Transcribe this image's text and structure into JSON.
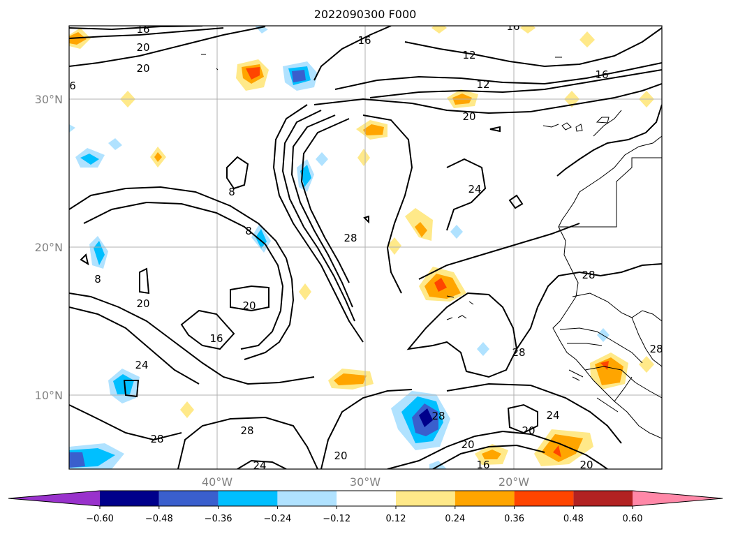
{
  "title": "2022090300 F000",
  "lat_labels": [
    "30°N",
    "20°N",
    "10°N"
  ],
  "lon_labels": [
    "40°W",
    "30°W",
    "20°W"
  ],
  "contour_labels": [
    "16",
    "20",
    "20",
    "16",
    "12",
    "12",
    "16",
    "16",
    "6",
    "20",
    "8",
    "8",
    "8",
    "20",
    "16",
    "20",
    "24",
    "28",
    "24",
    "28",
    "28",
    "28",
    "24",
    "28",
    "28",
    "20",
    "20",
    "24",
    "20",
    "16",
    "20",
    "28"
  ],
  "colorbar": {
    "ticks": [
      "−0.60",
      "−0.48",
      "−0.36",
      "−0.24",
      "−0.12",
      "0.12",
      "0.24",
      "0.36",
      "0.48",
      "0.60"
    ],
    "colors": [
      "#9932cc",
      "#00008b",
      "#3a5fcd",
      "#00bfff",
      "#b0e2ff",
      "#ffffff",
      "#ffe989",
      "#ffa500",
      "#ff4500",
      "#b22222",
      "#ff88a8"
    ]
  }
}
